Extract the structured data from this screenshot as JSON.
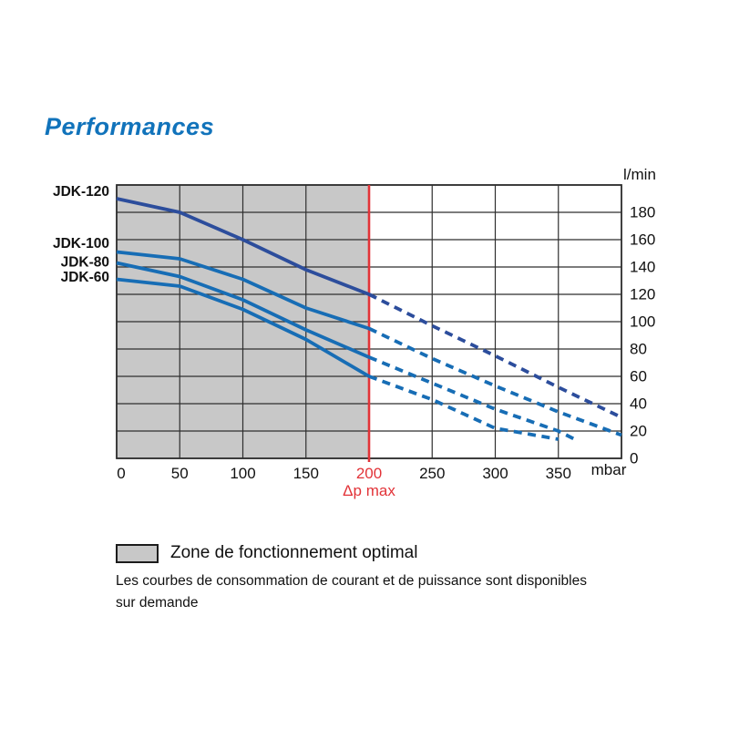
{
  "page": {
    "title": "Performances"
  },
  "chart_data": {
    "type": "line",
    "xlabel": "mbar",
    "ylabel": "l/min",
    "xlim": [
      0,
      400
    ],
    "ylim": [
      0,
      200
    ],
    "x_ticks": [
      0,
      50,
      100,
      150,
      200,
      250,
      300,
      350
    ],
    "y_ticks": [
      0,
      20,
      40,
      60,
      80,
      100,
      120,
      140,
      160,
      180
    ],
    "grid": true,
    "grid_step_x": 50,
    "grid_step_y": 20,
    "optimal_zone": {
      "x_min": 0,
      "x_max": 200,
      "fill": "#c8c8c8"
    },
    "dp_max": {
      "x": 200,
      "tick_label": "200",
      "caption": "Δp max",
      "color": "#e23338"
    },
    "series": [
      {
        "name": "JDK-120",
        "color": "#2c4d9c",
        "label_at": 195,
        "solid": [
          [
            0,
            190
          ],
          [
            50,
            180
          ],
          [
            100,
            160
          ],
          [
            150,
            138
          ],
          [
            200,
            120
          ]
        ],
        "dashed": [
          [
            200,
            120
          ],
          [
            250,
            97
          ],
          [
            300,
            75
          ],
          [
            350,
            52
          ],
          [
            400,
            30
          ]
        ]
      },
      {
        "name": "JDK-100",
        "color": "#176db5",
        "label_at": 157,
        "solid": [
          [
            0,
            151
          ],
          [
            50,
            146
          ],
          [
            100,
            131
          ],
          [
            150,
            110
          ],
          [
            200,
            95
          ]
        ],
        "dashed": [
          [
            200,
            95
          ],
          [
            250,
            73
          ],
          [
            300,
            53
          ],
          [
            350,
            34
          ],
          [
            400,
            17
          ]
        ]
      },
      {
        "name": "JDK-80",
        "color": "#176db5",
        "label_at": 143.5,
        "solid": [
          [
            0,
            143
          ],
          [
            50,
            133
          ],
          [
            100,
            116
          ],
          [
            150,
            94
          ],
          [
            200,
            74
          ]
        ],
        "dashed": [
          [
            200,
            74
          ],
          [
            250,
            55
          ],
          [
            300,
            36
          ],
          [
            350,
            20
          ],
          [
            365,
            13
          ]
        ]
      },
      {
        "name": "JDK-60",
        "color": "#176db5",
        "label_at": 132.5,
        "solid": [
          [
            0,
            131
          ],
          [
            50,
            126
          ],
          [
            100,
            109
          ],
          [
            150,
            87
          ],
          [
            200,
            60
          ]
        ],
        "dashed": [
          [
            200,
            60
          ],
          [
            250,
            43
          ],
          [
            300,
            22
          ],
          [
            350,
            14
          ]
        ]
      }
    ]
  },
  "legend": {
    "zone_label": "Zone de fonctionnement optimal"
  },
  "notes": {
    "line1": "Les courbes de consommation de courant et de puissance sont disponibles",
    "line2": "sur demande"
  },
  "colors": {
    "title": "#1173bb",
    "red": "#e23338",
    "zone_gray": "#c8c8c8",
    "grid": "#2f2f2f",
    "text": "#111111"
  }
}
